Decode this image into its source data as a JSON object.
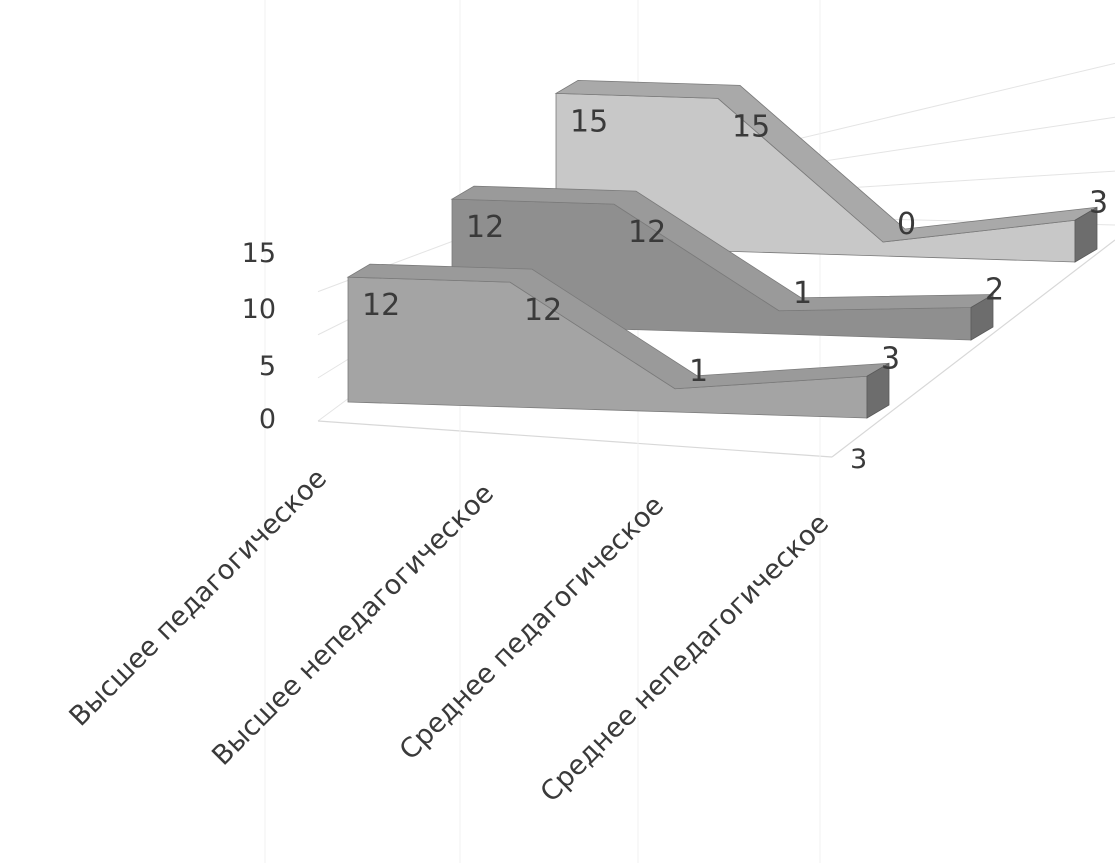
{
  "chart_data": {
    "type": "area",
    "title": "",
    "categories": [
      "Высшее педагогическое",
      "Высшее непедагогическое",
      "Среднее педагогическое",
      "Среднее непедагогическое"
    ],
    "series": [
      {
        "values": [
          12,
          12,
          1,
          3
        ]
      },
      {
        "values": [
          12,
          12,
          1,
          2
        ]
      },
      {
        "values": [
          15,
          15,
          0,
          3
        ]
      }
    ],
    "yticks": [
      "0",
      "5",
      "10",
      "15"
    ],
    "ylim": [
      0,
      15
    ],
    "grid": true,
    "legend": "none",
    "colors": [
      "#a4a4a4",
      "#8f8f8f",
      "#c8c8c8"
    ]
  }
}
